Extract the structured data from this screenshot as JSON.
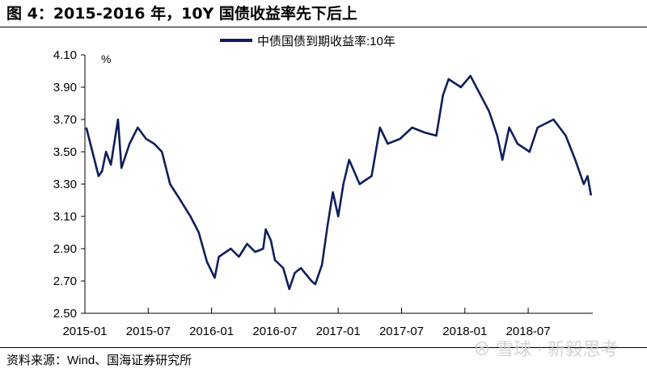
{
  "title": "图 4：2015-2016 年，10Y 国债收益率先下后上",
  "source": "资料来源：Wind、国海证券研究所",
  "watermark": "雪球 · 新毅思考",
  "chart_data": {
    "type": "line",
    "title": "",
    "xlabel": "",
    "ylabel": "%",
    "ylim": [
      2.5,
      4.1
    ],
    "yticks": [
      "4.10",
      "3.90",
      "3.70",
      "3.50",
      "3.30",
      "3.10",
      "2.90",
      "2.70",
      "2.50"
    ],
    "xticks": [
      "2015-01",
      "2015-07",
      "2016-01",
      "2016-07",
      "2017-01",
      "2017-07",
      "2018-01",
      "2018-07"
    ],
    "grid": false,
    "legend_placement": "top",
    "series": [
      {
        "name": "中债国债到期收益率:10年",
        "color": "#0e1f5b",
        "x": [
          "2015-01-05",
          "2015-02-10",
          "2015-02-20",
          "2015-03-01",
          "2015-03-15",
          "2015-04-05",
          "2015-04-15",
          "2015-05-08",
          "2015-06-01",
          "2015-06-25",
          "2015-07-18",
          "2015-08-10",
          "2015-09-03",
          "2015-09-27",
          "2015-11-01",
          "2015-11-25",
          "2015-12-18",
          "2016-01-10",
          "2016-01-22",
          "2016-02-26",
          "2016-03-19",
          "2016-04-12",
          "2016-05-05",
          "2016-05-28",
          "2016-06-05",
          "2016-06-20",
          "2016-07-01",
          "2016-07-25",
          "2016-08-12",
          "2016-08-28",
          "2016-09-15",
          "2016-10-15",
          "2016-10-26",
          "2016-11-15",
          "2016-12-01",
          "2016-12-16",
          "2017-01-01",
          "2017-01-16",
          "2017-02-02",
          "2017-03-02",
          "2017-04-06",
          "2017-04-30",
          "2017-05-22",
          "2017-06-27",
          "2017-08-01",
          "2017-09-06",
          "2017-10-10",
          "2017-10-29",
          "2017-11-15",
          "2017-12-20",
          "2018-01-17",
          "2018-02-16",
          "2018-03-10",
          "2018-04-03",
          "2018-04-18",
          "2018-05-07",
          "2018-05-31",
          "2018-07-05",
          "2018-07-28",
          "2018-09-13",
          "2018-10-18",
          "2018-11-15",
          "2018-12-09",
          "2018-12-20",
          "2018-12-30"
        ],
        "values": [
          3.65,
          3.35,
          3.38,
          3.5,
          3.42,
          3.7,
          3.4,
          3.55,
          3.65,
          3.58,
          3.55,
          3.5,
          3.3,
          3.22,
          3.1,
          3.0,
          2.82,
          2.72,
          2.85,
          2.9,
          2.85,
          2.93,
          2.88,
          2.9,
          3.02,
          2.95,
          2.83,
          2.78,
          2.65,
          2.75,
          2.78,
          2.7,
          2.68,
          2.8,
          3.05,
          3.25,
          3.1,
          3.3,
          3.45,
          3.3,
          3.35,
          3.65,
          3.55,
          3.58,
          3.65,
          3.62,
          3.6,
          3.85,
          3.95,
          3.9,
          3.97,
          3.85,
          3.75,
          3.6,
          3.45,
          3.65,
          3.55,
          3.5,
          3.65,
          3.7,
          3.6,
          3.45,
          3.3,
          3.35,
          3.23
        ]
      }
    ]
  }
}
